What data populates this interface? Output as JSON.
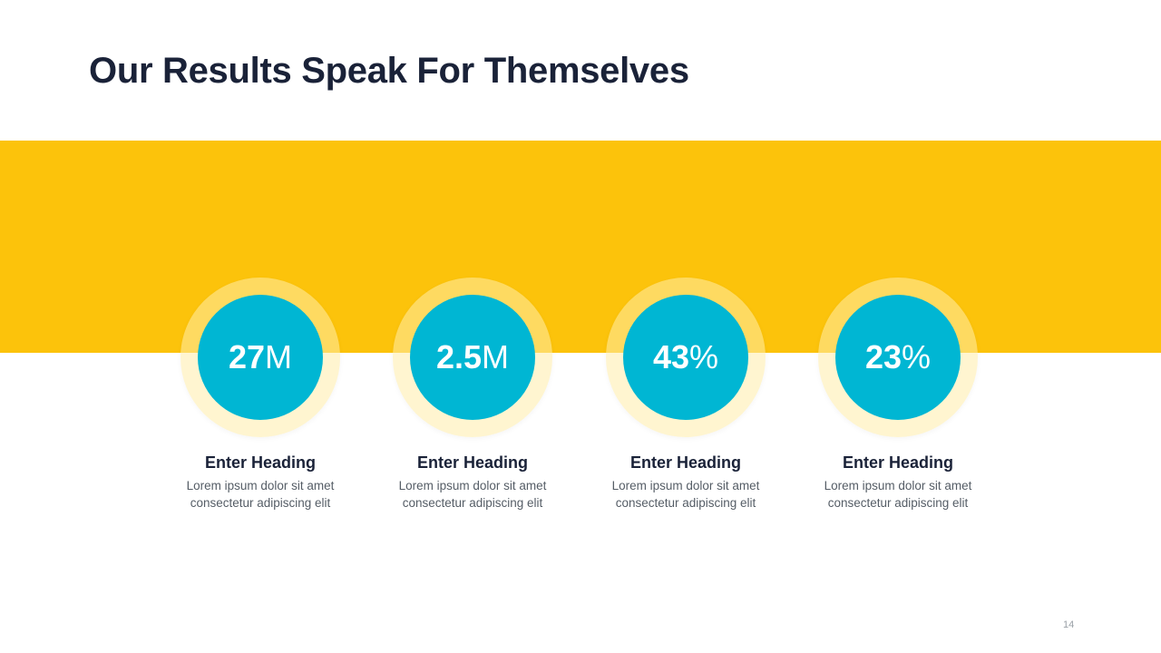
{
  "slide": {
    "title": "Our Results Speak For Themselves",
    "page_number": "14",
    "colors": {
      "band": "#fcc30b",
      "accent": "#00b6d3",
      "title": "#1a2238",
      "body_text": "#555d66"
    }
  },
  "stats": [
    {
      "value": "27",
      "unit": "M",
      "heading": "Enter Heading",
      "line1": "Lorem ipsum dolor sit amet",
      "line2": "consectetur adipiscing elit"
    },
    {
      "value": "2.5",
      "unit": "M",
      "heading": "Enter Heading",
      "line1": "Lorem ipsum dolor sit amet",
      "line2": "consectetur adipiscing elit"
    },
    {
      "value": "43",
      "unit": "%",
      "heading": "Enter Heading",
      "line1": "Lorem ipsum dolor sit amet",
      "line2": "consectetur adipiscing elit"
    },
    {
      "value": "23",
      "unit": "%",
      "heading": "Enter Heading",
      "line1": "Lorem ipsum dolor sit amet",
      "line2": "consectetur adipiscing elit"
    }
  ]
}
